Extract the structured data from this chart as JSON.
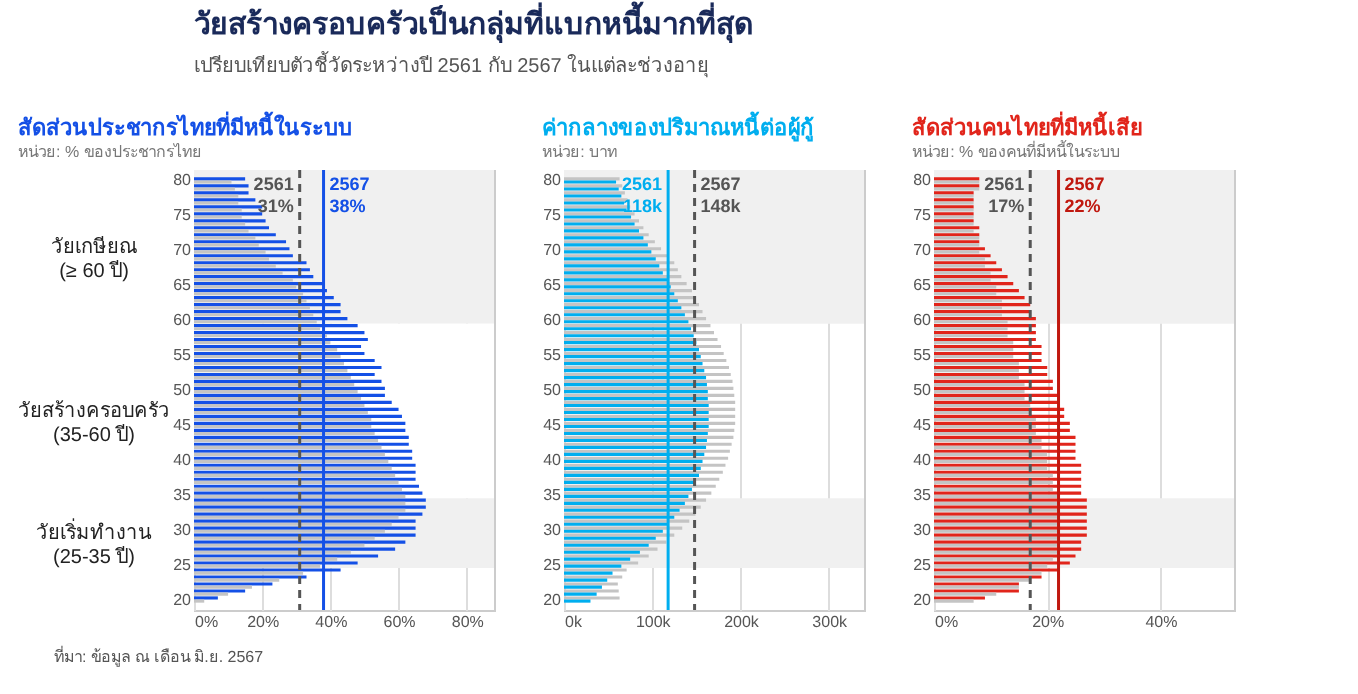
{
  "chart_data": [
    {
      "type": "other",
      "title": "วัยสร้างครอบครัวเป็นกลุ่มที่แบกหนี้มากที่สุด",
      "subtitle": "เปรียบเทียบตัวชี้วัดระหว่างปี 2561 กับ 2567 ในแต่ละช่วงอายุ",
      "annotations": [
        "ที่มา: ข้อมูล ณ เดือน มิ.ย. 2567"
      ]
    },
    {
      "type": "bar",
      "orientation": "horizontal",
      "title": "สัดส่วนประชากรไทยที่มีหนี้ในระบบ",
      "subtitle": "หน่วย: % ของประชากรไทย",
      "legend": false,
      "grid": "x",
      "x": [
        80,
        79,
        78,
        77,
        76,
        75,
        74,
        73,
        72,
        71,
        70,
        69,
        68,
        67,
        66,
        65,
        64,
        63,
        62,
        61,
        60,
        59,
        58,
        57,
        56,
        55,
        54,
        53,
        52,
        51,
        50,
        49,
        48,
        47,
        46,
        45,
        44,
        43,
        42,
        41,
        40,
        39,
        38,
        37,
        36,
        35,
        34,
        33,
        32,
        31,
        30,
        29,
        28,
        27,
        26,
        25,
        24,
        23,
        22,
        21,
        20
      ],
      "xlim": [
        0,
        88
      ],
      "xticks": [
        {
          "value": 0,
          "label": "0%"
        },
        {
          "value": 20,
          "label": "20%"
        },
        {
          "value": 40,
          "label": "40%"
        },
        {
          "value": 60,
          "label": "60%"
        },
        {
          "value": 80,
          "label": "80%"
        }
      ],
      "ylim": [
        18.5,
        81.5
      ],
      "yticks": [
        20,
        25,
        30,
        35,
        40,
        45,
        50,
        55,
        60,
        65,
        70,
        75,
        80
      ],
      "series": [
        {
          "color": "#1450e6",
          "values": [
            15,
            16,
            16,
            18,
            20,
            20,
            21,
            22,
            24,
            27,
            28,
            29,
            33,
            34,
            35,
            38,
            39,
            41,
            43,
            43,
            45,
            48,
            50,
            51,
            49,
            50,
            53,
            55,
            53,
            55,
            56,
            56,
            58,
            60,
            61,
            62,
            62,
            63,
            63,
            64,
            64,
            65,
            65,
            65,
            66,
            67,
            68,
            68,
            67,
            65,
            65,
            65,
            62,
            59,
            54,
            48,
            43,
            33,
            23,
            15,
            7
          ]
        },
        {
          "color": "#c4c4c4",
          "values": [
            11,
            12,
            13,
            13,
            14,
            14,
            15,
            16,
            18,
            19,
            21,
            22,
            24,
            26,
            29,
            30,
            32,
            33,
            34,
            35,
            36,
            37,
            39,
            40,
            42,
            43,
            44,
            45,
            46,
            47,
            48,
            49,
            50,
            51,
            52,
            52,
            53,
            54,
            55,
            56,
            57,
            58,
            59,
            60,
            61,
            62,
            62,
            62,
            60,
            58,
            56,
            53,
            50,
            46,
            42,
            37,
            32,
            25,
            17,
            10,
            3
          ]
        }
      ],
      "ref_lines": [
        {
          "axis": "x",
          "value": 31,
          "label": "2561 31%",
          "color": "#555555",
          "line_style": "dashed"
        },
        {
          "axis": "x",
          "value": 38,
          "label": "2567 38%",
          "color": "#1450e6",
          "line_style": "solid"
        }
      ],
      "bands": [
        {
          "axis": "y",
          "from": 59.5,
          "to": 81.5,
          "label": "วัยเกษียณ (≥ 60 ปี)",
          "color": "#f0f0f0"
        },
        {
          "axis": "y",
          "from": 34.5,
          "to": 59.5,
          "label": "วัยสร้างครอบครัว (35-60 ปี)",
          "color": "#ffffff"
        },
        {
          "axis": "y",
          "from": 24.5,
          "to": 34.5,
          "label": "วัยเริ่มทำงาน (25-35 ปี)",
          "color": "#f0f0f0"
        }
      ]
    },
    {
      "type": "bar",
      "orientation": "horizontal",
      "title": "ค่ากลางของปริมาณหนี้ต่อผู้กู้",
      "subtitle": "หน่วย: บาท",
      "legend": false,
      "grid": "x",
      "x": [
        80,
        79,
        78,
        77,
        76,
        75,
        74,
        73,
        72,
        71,
        70,
        69,
        68,
        67,
        66,
        65,
        64,
        63,
        62,
        61,
        60,
        59,
        58,
        57,
        56,
        55,
        54,
        53,
        52,
        51,
        50,
        49,
        48,
        47,
        46,
        45,
        44,
        43,
        42,
        41,
        40,
        39,
        38,
        37,
        36,
        35,
        34,
        33,
        32,
        31,
        30,
        29,
        28,
        27,
        26,
        25,
        24,
        23,
        22,
        21,
        20
      ],
      "xlim": [
        0,
        340
      ],
      "xticks": [
        {
          "value": 0,
          "label": "0k"
        },
        {
          "value": 100,
          "label": "100k"
        },
        {
          "value": 200,
          "label": "200k"
        },
        {
          "value": 300,
          "label": "300k"
        }
      ],
      "ylim": [
        18.5,
        81.5
      ],
      "yticks": [
        20,
        25,
        30,
        35,
        40,
        45,
        50,
        55,
        60,
        65,
        70,
        75,
        80
      ],
      "series": [
        {
          "color": "#c4c4c4",
          "values": [
            63,
            66,
            69,
            72,
            75,
            80,
            85,
            90,
            96,
            103,
            110,
            118,
            125,
            129,
            133,
            139,
            145,
            149,
            153,
            157,
            161,
            166,
            170,
            174,
            178,
            181,
            184,
            187,
            189,
            191,
            192,
            193,
            194,
            194,
            194,
            194,
            193,
            192,
            190,
            188,
            186,
            183,
            180,
            176,
            172,
            167,
            161,
            155,
            149,
            142,
            134,
            125,
            116,
            106,
            96,
            84,
            71,
            66,
            61,
            62,
            63
          ]
        },
        {
          "color": "#00aeef",
          "values": [
            59,
            62,
            65,
            68,
            71,
            76,
            80,
            85,
            90,
            95,
            99,
            104,
            108,
            112,
            117,
            121,
            125,
            129,
            133,
            137,
            141,
            144,
            147,
            150,
            153,
            155,
            157,
            159,
            161,
            162,
            163,
            163,
            164,
            164,
            164,
            164,
            163,
            162,
            161,
            159,
            157,
            155,
            153,
            149,
            145,
            141,
            137,
            131,
            125,
            119,
            112,
            104,
            96,
            86,
            75,
            65,
            55,
            49,
            43,
            37,
            30
          ]
        }
      ],
      "ref_lines": [
        {
          "axis": "x",
          "value": 118,
          "label": "2561 118k",
          "color": "#00aeef",
          "line_style": "solid"
        },
        {
          "axis": "x",
          "value": 148,
          "label": "2567 148k",
          "color": "#555555",
          "line_style": "dashed"
        }
      ],
      "bands": [
        {
          "axis": "y",
          "from": 59.5,
          "to": 81.5,
          "color": "#f0f0f0"
        },
        {
          "axis": "y",
          "from": 24.5,
          "to": 34.5,
          "color": "#f0f0f0"
        }
      ]
    },
    {
      "type": "bar",
      "orientation": "horizontal",
      "title": "สัดส่วนคนไทยที่มีหนี้เสีย",
      "subtitle": "หน่วย: % ของคนที่มีหนี้ในระบบ",
      "legend": false,
      "grid": "x",
      "x": [
        80,
        79,
        78,
        77,
        76,
        75,
        74,
        73,
        72,
        71,
        70,
        69,
        68,
        67,
        66,
        65,
        64,
        63,
        62,
        61,
        60,
        59,
        58,
        57,
        56,
        55,
        54,
        53,
        52,
        51,
        50,
        49,
        48,
        47,
        46,
        45,
        44,
        43,
        42,
        41,
        40,
        39,
        38,
        37,
        36,
        35,
        34,
        33,
        32,
        31,
        30,
        29,
        28,
        27,
        26,
        25,
        24,
        23,
        22,
        21,
        20
      ],
      "xlim": [
        0,
        53
      ],
      "xticks": [
        {
          "value": 0,
          "label": "0%"
        },
        {
          "value": 20,
          "label": "20%"
        },
        {
          "value": 40,
          "label": "40%"
        }
      ],
      "ylim": [
        18.5,
        81.5
      ],
      "yticks": [
        20,
        25,
        30,
        35,
        40,
        45,
        50,
        55,
        60,
        65,
        70,
        75,
        80
      ],
      "series": [
        {
          "color": "#e1251b",
          "values": [
            8,
            8,
            7,
            7,
            7,
            7,
            7,
            8,
            8,
            8,
            9,
            10,
            11,
            12,
            13,
            14,
            15,
            16,
            17,
            17,
            18,
            18,
            18,
            18,
            19,
            19,
            19,
            20,
            20,
            21,
            21,
            22,
            22,
            23,
            23,
            24,
            24,
            25,
            25,
            25,
            25,
            26,
            26,
            26,
            26,
            26,
            27,
            27,
            27,
            27,
            27,
            27,
            26,
            26,
            25,
            24,
            22,
            19,
            15,
            15,
            9
          ]
        },
        {
          "color": "#c4c4c4",
          "values": [
            8,
            8,
            7,
            7,
            7,
            7,
            7,
            7,
            8,
            8,
            8,
            9,
            9,
            10,
            10,
            11,
            11,
            12,
            12,
            12,
            13,
            13,
            13,
            14,
            14,
            14,
            15,
            15,
            15,
            16,
            16,
            16,
            17,
            17,
            18,
            18,
            18,
            19,
            19,
            20,
            20,
            20,
            21,
            21,
            21,
            22,
            22,
            22,
            22,
            22,
            22,
            22,
            22,
            22,
            21,
            20,
            19,
            17,
            15,
            11,
            7
          ]
        }
      ],
      "ref_lines": [
        {
          "axis": "x",
          "value": 17,
          "label": "2561 17%",
          "color": "#555555",
          "line_style": "dashed"
        },
        {
          "axis": "x",
          "value": 22,
          "label": "2567 22%",
          "color": "#c0180f",
          "line_style": "solid"
        }
      ],
      "bands": [
        {
          "axis": "y",
          "from": 59.5,
          "to": 81.5,
          "color": "#f0f0f0"
        },
        {
          "axis": "y",
          "from": 24.5,
          "to": 34.5,
          "color": "#f0f0f0"
        }
      ]
    }
  ]
}
